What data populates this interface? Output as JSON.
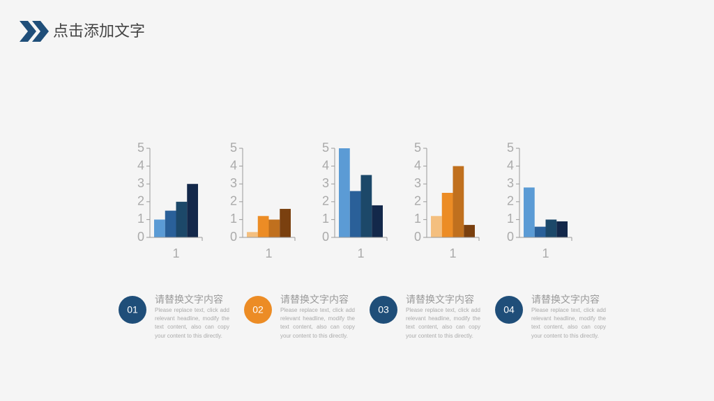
{
  "header": {
    "title": "点击添加文字"
  },
  "chart_data": [
    {
      "type": "bar",
      "categories": [
        "1"
      ],
      "ylim": [
        0,
        5
      ],
      "yticks": [
        0,
        1,
        2,
        3,
        4,
        5
      ],
      "series": [
        {
          "color": "#5b9bd5",
          "values": [
            1
          ]
        },
        {
          "color": "#2a6099",
          "values": [
            1.5
          ]
        },
        {
          "color": "#1c4869",
          "values": [
            2
          ]
        },
        {
          "color": "#13284a",
          "values": [
            3
          ]
        }
      ]
    },
    {
      "type": "bar",
      "categories": [
        "1"
      ],
      "ylim": [
        0,
        5
      ],
      "yticks": [
        0,
        1,
        2,
        3,
        4,
        5
      ],
      "series": [
        {
          "color": "#f4bf7f",
          "values": [
            0.3
          ]
        },
        {
          "color": "#ec8c25",
          "values": [
            1.2
          ]
        },
        {
          "color": "#c0701e",
          "values": [
            1
          ]
        },
        {
          "color": "#7a400f",
          "values": [
            1.6
          ]
        }
      ]
    },
    {
      "type": "bar",
      "categories": [
        "1"
      ],
      "ylim": [
        0,
        5
      ],
      "yticks": [
        0,
        1,
        2,
        3,
        4,
        5
      ],
      "series": [
        {
          "color": "#5b9bd5",
          "values": [
            5
          ]
        },
        {
          "color": "#2a6099",
          "values": [
            2.6
          ]
        },
        {
          "color": "#1c4869",
          "values": [
            3.5
          ]
        },
        {
          "color": "#13284a",
          "values": [
            1.8
          ]
        }
      ]
    },
    {
      "type": "bar",
      "categories": [
        "1"
      ],
      "ylim": [
        0,
        5
      ],
      "yticks": [
        0,
        1,
        2,
        3,
        4,
        5
      ],
      "series": [
        {
          "color": "#f4bf7f",
          "values": [
            1.2
          ]
        },
        {
          "color": "#ec8c25",
          "values": [
            2.5
          ]
        },
        {
          "color": "#c0701e",
          "values": [
            4
          ]
        },
        {
          "color": "#7a400f",
          "values": [
            0.7
          ]
        }
      ]
    },
    {
      "type": "bar",
      "categories": [
        "1"
      ],
      "ylim": [
        0,
        5
      ],
      "yticks": [
        0,
        1,
        2,
        3,
        4,
        5
      ],
      "series": [
        {
          "color": "#5b9bd5",
          "values": [
            2.8
          ]
        },
        {
          "color": "#2a6099",
          "values": [
            0.6
          ]
        },
        {
          "color": "#1c4869",
          "values": [
            1
          ]
        },
        {
          "color": "#13284a",
          "values": [
            0.9
          ]
        }
      ]
    }
  ],
  "items": [
    {
      "number": "01",
      "color": "#1f4e79",
      "title": "请替换文字内容",
      "text": "Please replace text, click add relevant headline, modify the text content, also can copy your content to this directly."
    },
    {
      "number": "02",
      "color": "#ec8c25",
      "title": "请替换文字内容",
      "text": "Please replace text, click add relevant headline, modify the text content, also can copy your content to this directly."
    },
    {
      "number": "03",
      "color": "#1f4e79",
      "title": "请替换文字内容",
      "text": "Please replace text, click add relevant headline, modify the text content, also can copy your content to this directly."
    },
    {
      "number": "04",
      "color": "#1f4e79",
      "title": "请替换文字内容",
      "text": "Please replace text, click add relevant headline, modify the text content, also can copy your content to this directly."
    }
  ]
}
